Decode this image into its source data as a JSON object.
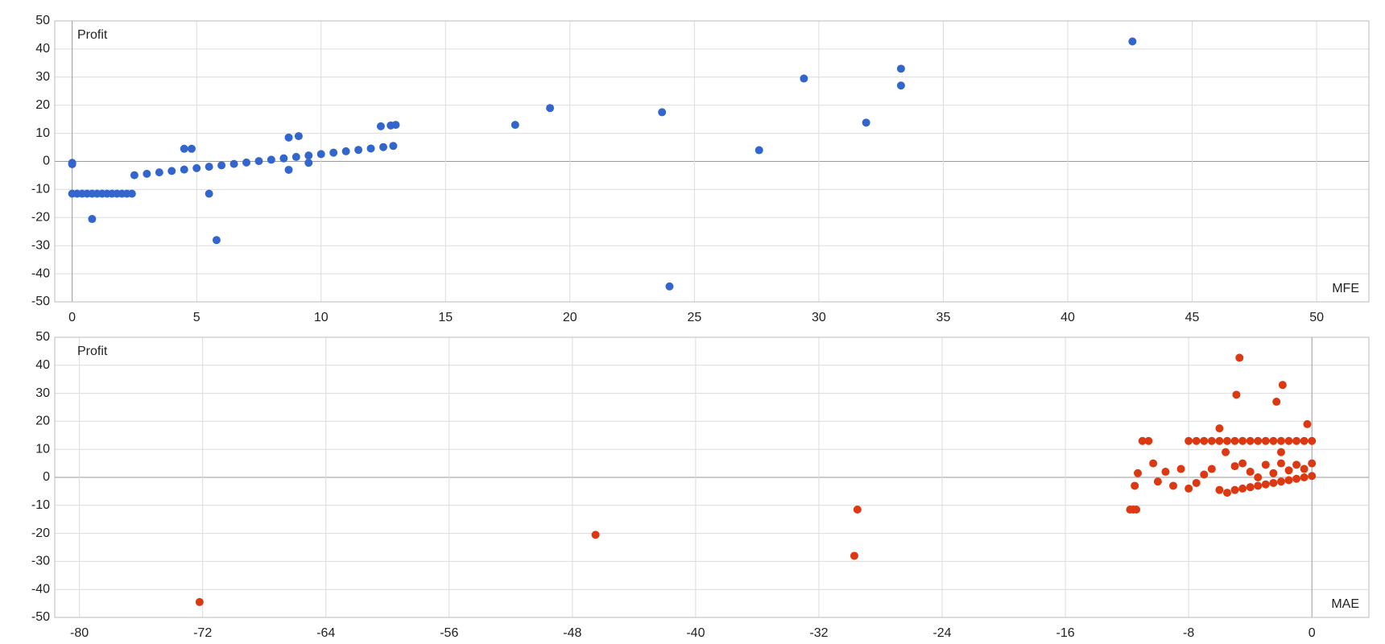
{
  "chart_data": [
    {
      "type": "scatter",
      "xlabel": "MFE",
      "ylabel": "Profit",
      "grid": true,
      "xlim": [
        -0.7,
        52.1
      ],
      "ylim": [
        -50,
        50
      ],
      "xticks": [
        0,
        5,
        10,
        15,
        20,
        25,
        30,
        35,
        40,
        45,
        50
      ],
      "yticks": [
        -50,
        -40,
        -30,
        -20,
        -10,
        0,
        10,
        20,
        30,
        40,
        50
      ],
      "series": [
        {
          "color": "#3366cc",
          "x": [
            0,
            0.2,
            0.4,
            0.6,
            0.8,
            1.0,
            1.2,
            1.4,
            1.6,
            1.8,
            2.0,
            2.2,
            2.4,
            2.5,
            3,
            3.5,
            4,
            4.5,
            5,
            5.5,
            6,
            6.5,
            7,
            7.5,
            8,
            8.5,
            9,
            9.5,
            10,
            10.5,
            11,
            11.5,
            12,
            12.5,
            12.9,
            0,
            0,
            0.8,
            4.5,
            4.8,
            5.5,
            5.8,
            8.7,
            8.7,
            9.1,
            9.5,
            12.4,
            12.8,
            13,
            17.8,
            19.2,
            23.7,
            24,
            27.6,
            29.4,
            31.9,
            33.3,
            33.3,
            42.6
          ],
          "values": [
            -11.5,
            -11.5,
            -11.5,
            -11.5,
            -11.5,
            -11.5,
            -11.5,
            -11.5,
            -11.5,
            -11.5,
            -11.5,
            -11.5,
            -11.5,
            -4.9,
            -4.4,
            -3.9,
            -3.4,
            -2.9,
            -2.4,
            -1.9,
            -1.4,
            -0.9,
            -0.4,
            0.1,
            0.6,
            1.1,
            1.6,
            2.1,
            2.6,
            3.1,
            3.6,
            4.1,
            4.6,
            5.1,
            5.5,
            -1,
            -0.5,
            -20.5,
            4.5,
            4.5,
            -11.5,
            -28,
            -3,
            8.5,
            9,
            -0.5,
            12.5,
            12.8,
            13,
            13,
            19,
            17.5,
            -44.5,
            4,
            29.5,
            13.8,
            27,
            33,
            42.7
          ]
        }
      ]
    },
    {
      "type": "scatter",
      "xlabel": "MAE",
      "ylabel": "Profit",
      "grid": true,
      "xlim": [
        -81.6,
        3.7
      ],
      "ylim": [
        -50,
        50
      ],
      "xticks": [
        -80,
        -72,
        -64,
        -56,
        -48,
        -40,
        -32,
        -24,
        -16,
        -8,
        0
      ],
      "yticks": [
        -50,
        -40,
        -30,
        -20,
        -10,
        0,
        10,
        20,
        30,
        40,
        50
      ],
      "series": [
        {
          "color": "#dc3912",
          "x": [
            -72.2,
            -46.5,
            -29.7,
            -29.5,
            -11.8,
            -11.6,
            -11.4,
            -11.5,
            -11.3,
            -11,
            -10.6,
            -10.3,
            -10,
            -9.5,
            -9,
            -8.5,
            -8,
            -7.5,
            -7,
            -6.5,
            -6,
            -5.5,
            -5,
            -4.5,
            -4,
            -3.5,
            -3,
            -2.5,
            -2,
            -1.5,
            -1,
            -0.5,
            0,
            -8,
            -7.5,
            -7,
            -6.5,
            -6,
            -5.5,
            -5,
            -4.5,
            -4,
            -3.5,
            -3,
            -2.5,
            -2,
            -1.5,
            -1,
            -0.5,
            0,
            -5,
            -4.5,
            -4,
            -3,
            -2,
            -1,
            0,
            -3.5,
            -2.5,
            -1.5,
            -0.5,
            -6,
            -5.6,
            -4.7,
            -4.9,
            -1.9,
            -2.3,
            -0.3,
            -2
          ],
          "values": [
            -44.5,
            -20.5,
            -28,
            -11.5,
            -11.5,
            -11.5,
            -11.5,
            -3,
            1.5,
            13,
            13,
            5,
            -1.5,
            2,
            -3,
            3,
            13,
            13,
            13,
            13,
            13,
            13,
            13,
            13,
            13,
            13,
            13,
            13,
            13,
            13,
            13,
            13,
            13,
            -4,
            -2,
            1,
            3,
            -4.5,
            -5.5,
            -4.5,
            -4,
            -3.5,
            -3,
            -2.5,
            -2,
            -1.5,
            -1,
            -0.5,
            0,
            0.5,
            4,
            5,
            2,
            4.5,
            5,
            4.5,
            5,
            0,
            1.5,
            2.5,
            3,
            17.5,
            9,
            42.7,
            29.5,
            33,
            27,
            19,
            9
          ]
        }
      ]
    }
  ]
}
